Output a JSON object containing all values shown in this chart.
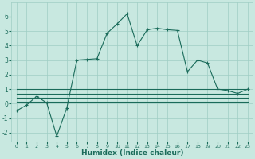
{
  "xlabel": "Humidex (Indice chaleur)",
  "x": [
    0,
    1,
    2,
    3,
    4,
    5,
    6,
    7,
    8,
    9,
    10,
    11,
    12,
    13,
    14,
    15,
    16,
    17,
    18,
    19,
    20,
    21,
    22,
    23
  ],
  "main_y": [
    -0.5,
    -0.1,
    0.5,
    0.05,
    -2.25,
    -0.3,
    3.0,
    3.05,
    3.1,
    4.85,
    5.5,
    6.2,
    4.0,
    5.1,
    5.2,
    5.1,
    5.05,
    2.2,
    3.0,
    2.8,
    1.0,
    0.9,
    0.7,
    1.0
  ],
  "line2_y": [
    1.0,
    1.0,
    1.0,
    1.0,
    1.0,
    1.0,
    1.0,
    1.0,
    1.0,
    1.0,
    1.0,
    1.0,
    1.0,
    1.0,
    1.0,
    1.0,
    1.0,
    1.0,
    1.0,
    1.0,
    1.0,
    1.0,
    1.0,
    1.0
  ],
  "line3_y": [
    0.7,
    0.7,
    0.7,
    0.7,
    0.7,
    0.7,
    0.7,
    0.7,
    0.7,
    0.7,
    0.7,
    0.7,
    0.7,
    0.7,
    0.7,
    0.7,
    0.7,
    0.7,
    0.7,
    0.7,
    0.7,
    0.7,
    0.7,
    0.7
  ],
  "line4_y": [
    0.4,
    0.4,
    0.4,
    0.4,
    0.4,
    0.4,
    0.4,
    0.4,
    0.4,
    0.4,
    0.4,
    0.4,
    0.4,
    0.4,
    0.4,
    0.4,
    0.4,
    0.4,
    0.4,
    0.4,
    0.4,
    0.4,
    0.4,
    0.4
  ],
  "line5_y": [
    0.15,
    0.15,
    0.15,
    0.15,
    0.15,
    0.15,
    0.15,
    0.15,
    0.15,
    0.15,
    0.15,
    0.15,
    0.15,
    0.15,
    0.15,
    0.15,
    0.15,
    0.15,
    0.15,
    0.15,
    0.15,
    0.15,
    0.15,
    0.15
  ],
  "line_color": "#1a6b5a",
  "bg_color": "#c8e8e0",
  "grid_color": "#9fcec4",
  "ylim": [
    -2.6,
    7.0
  ],
  "yticks": [
    -2,
    -1,
    0,
    1,
    2,
    3,
    4,
    5,
    6
  ],
  "marker": "+"
}
